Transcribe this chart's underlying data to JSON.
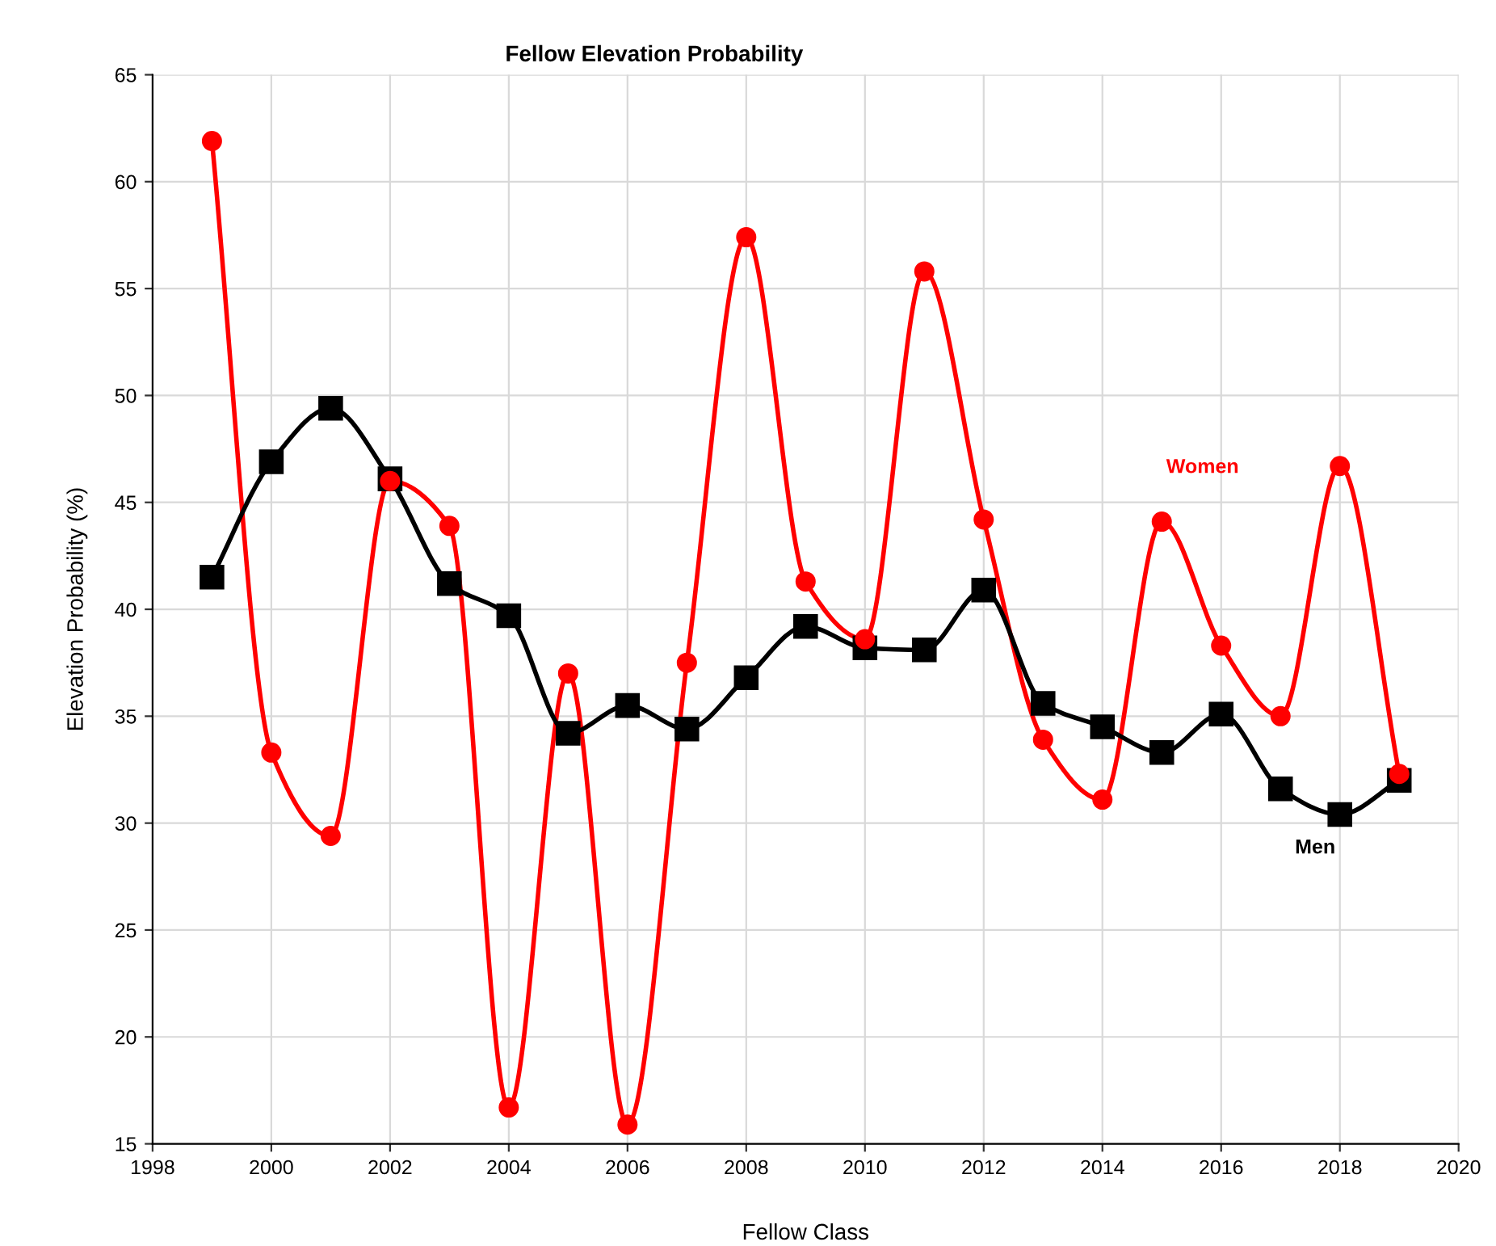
{
  "chart_data": {
    "type": "line",
    "title": "Fellow Elevation Probability",
    "xlabel": "Fellow Class",
    "ylabel": "Elevation Probability (%)",
    "x": [
      1999,
      2000,
      2001,
      2002,
      2003,
      2004,
      2005,
      2006,
      2007,
      2008,
      2009,
      2010,
      2011,
      2012,
      2013,
      2014,
      2015,
      2016,
      2017,
      2018,
      2019
    ],
    "series": [
      {
        "name": "Women",
        "color": "#ff0000",
        "marker": "circle",
        "values": [
          61.9,
          33.3,
          29.4,
          46.0,
          43.9,
          16.7,
          37.0,
          15.9,
          37.5,
          57.4,
          41.3,
          38.6,
          55.8,
          44.2,
          33.9,
          31.1,
          44.1,
          38.3,
          35.0,
          46.7,
          32.3
        ]
      },
      {
        "name": "Men",
        "color": "#000000",
        "marker": "square",
        "values": [
          41.5,
          46.9,
          49.4,
          46.1,
          41.2,
          39.7,
          34.2,
          35.5,
          34.4,
          36.8,
          39.2,
          38.2,
          38.1,
          40.9,
          35.6,
          34.5,
          33.3,
          35.1,
          31.6,
          30.4,
          32.0
        ]
      }
    ],
    "xlim": [
      1998,
      2020
    ],
    "xticks": [
      1998,
      2000,
      2002,
      2004,
      2006,
      2008,
      2010,
      2012,
      2014,
      2016,
      2018,
      2020
    ],
    "ylim": [
      15,
      65
    ],
    "yticks": [
      15,
      20,
      25,
      30,
      35,
      40,
      45,
      50,
      55,
      60,
      65
    ],
    "grid": true,
    "legend": false,
    "line_style": "solid"
  }
}
